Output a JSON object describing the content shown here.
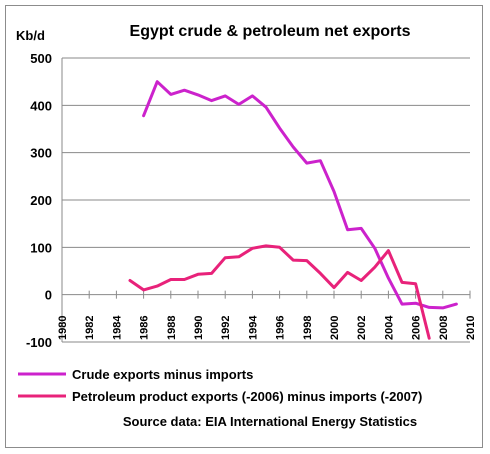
{
  "chart_data": {
    "type": "line",
    "title": "Egypt crude & petroleum net exports",
    "ylabel": "Kb/d",
    "xlim": [
      1980,
      2010
    ],
    "ylim": [
      -100,
      500
    ],
    "x_ticks": [
      "1980",
      "1982",
      "1984",
      "1986",
      "1988",
      "1990",
      "1992",
      "1994",
      "1996",
      "1998",
      "2000",
      "2002",
      "2004",
      "2006",
      "2008",
      "2010"
    ],
    "y_ticks": [
      "500",
      "400",
      "300",
      "200",
      "100",
      "0",
      "-100"
    ],
    "grid": true,
    "legend_position": "bottom",
    "source": "Source data: EIA International Energy Statistics",
    "series": [
      {
        "name": "Crude exports minus imports",
        "color": "#cc22cc",
        "x": [
          1986,
          1987,
          1988,
          1989,
          1990,
          1991,
          1992,
          1993,
          1994,
          1995,
          1996,
          1997,
          1998,
          1999,
          2000,
          2001,
          2002,
          2003,
          2004,
          2005,
          2006,
          2007,
          2008,
          2009
        ],
        "y": [
          378,
          450,
          423,
          432,
          422,
          410,
          420,
          402,
          420,
          396,
          352,
          312,
          278,
          283,
          218,
          137,
          140,
          98,
          35,
          -20,
          -18,
          -27,
          -28,
          -20
        ]
      },
      {
        "name": "Petroleum product exports (-2006) minus imports (-2007)",
        "color": "#e8227a",
        "x": [
          1985,
          1986,
          1987,
          1988,
          1989,
          1990,
          1991,
          1992,
          1993,
          1994,
          1995,
          1996,
          1997,
          1998,
          1999,
          2000,
          2001,
          2002,
          2003,
          2004,
          2005,
          2006,
          2007
        ],
        "y": [
          30,
          10,
          18,
          32,
          32,
          43,
          45,
          78,
          80,
          98,
          103,
          100,
          73,
          72,
          45,
          15,
          47,
          30,
          58,
          93,
          26,
          23,
          -92
        ]
      }
    ]
  }
}
